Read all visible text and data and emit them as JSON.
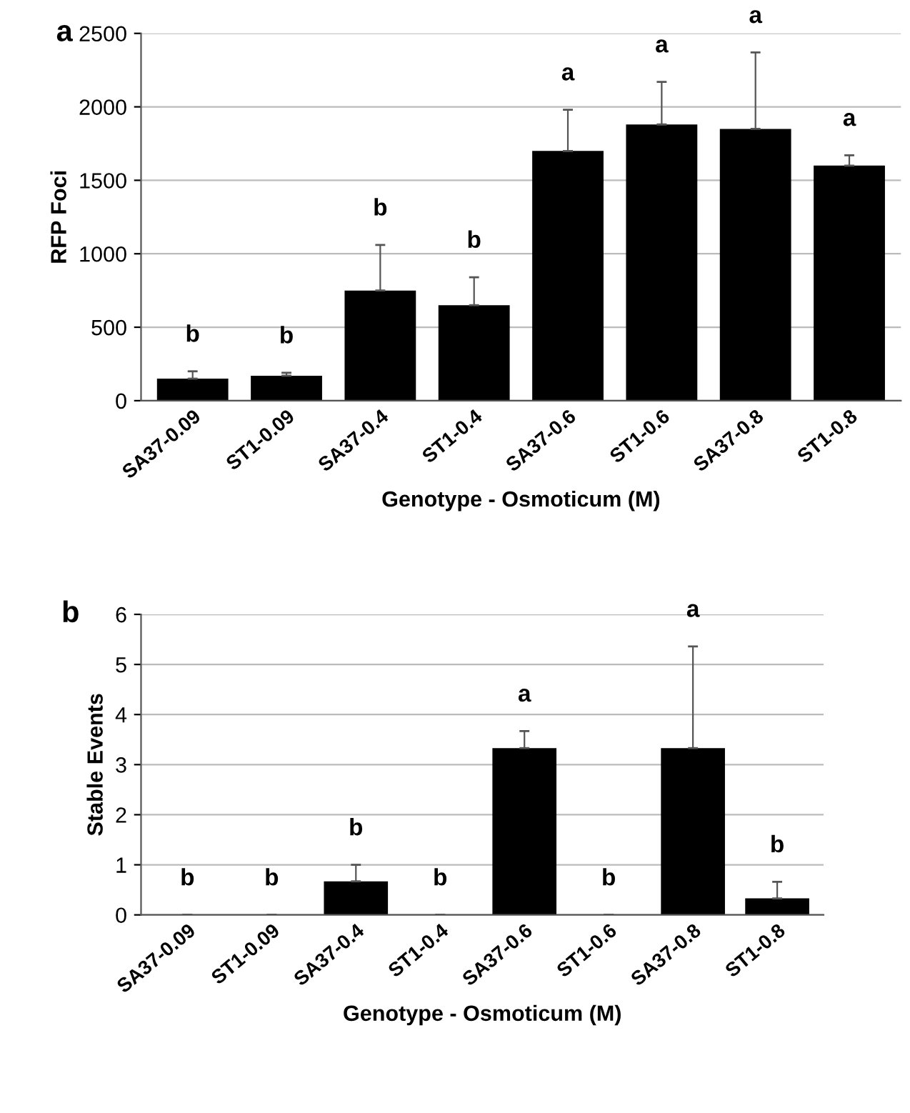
{
  "chart_data": [
    {
      "type": "bar",
      "title": "a",
      "xlabel": "Genotype - Osmoticum (M)",
      "ylabel": "RFP Foci",
      "categories": [
        "SA37-0.09",
        "ST1-0.09",
        "SA37-0.4",
        "ST1-0.4",
        "SA37-0.6",
        "ST1-0.6",
        "SA37-0.8",
        "ST1-0.8"
      ],
      "series": [
        {
          "color": "#000000",
          "values": [
            150,
            170,
            750,
            650,
            1700,
            1880,
            1850,
            1600
          ],
          "errors": [
            50,
            20,
            310,
            190,
            280,
            290,
            520,
            70
          ]
        }
      ],
      "ylim": [
        0,
        2500
      ],
      "yticks": [
        0,
        500,
        1000,
        1500,
        2000,
        2500
      ],
      "grid": "y",
      "annotations": [
        "b",
        "b",
        "b",
        "b",
        "a",
        "a",
        "a",
        "a"
      ]
    },
    {
      "type": "bar",
      "title": "b",
      "xlabel": "Genotype - Osmoticum (M)",
      "ylabel": "Stable Events",
      "categories": [
        "SA37-0.09",
        "ST1-0.09",
        "SA37-0.4",
        "ST1-0.4",
        "SA37-0.6",
        "ST1-0.6",
        "SA37-0.8",
        "ST1-0.8"
      ],
      "series": [
        {
          "color": "#000000",
          "values": [
            0,
            0,
            0.67,
            0,
            3.33,
            0,
            3.33,
            0.33
          ],
          "errors": [
            null,
            null,
            0.33,
            null,
            0.34,
            null,
            2.03,
            0.33
          ]
        }
      ],
      "ylim": [
        0,
        6
      ],
      "yticks": [
        0,
        1,
        2,
        3,
        4,
        5,
        6
      ],
      "grid": "y",
      "annotations": [
        "b",
        "b",
        "b",
        "b",
        "a",
        "b",
        "a",
        "b"
      ]
    }
  ]
}
